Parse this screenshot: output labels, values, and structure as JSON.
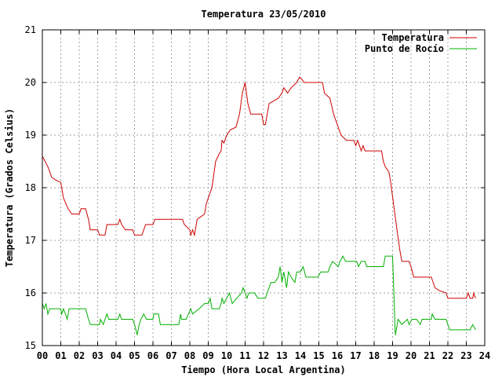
{
  "chart_data": {
    "type": "line",
    "title": "Temperatura 23/05/2010",
    "xlabel": "Tiempo (Hora Local Argentina)",
    "ylabel": "Temperatura (Grados Celsius)",
    "xlim": [
      0,
      24
    ],
    "ylim": [
      15,
      21
    ],
    "x_ticks": [
      "00",
      "01",
      "02",
      "03",
      "04",
      "05",
      "06",
      "07",
      "08",
      "09",
      "10",
      "11",
      "12",
      "13",
      "14",
      "15",
      "16",
      "17",
      "18",
      "19",
      "20",
      "21",
      "22",
      "23",
      "24"
    ],
    "y_ticks": [
      "15",
      "16",
      "17",
      "18",
      "19",
      "20",
      "21"
    ],
    "grid": true,
    "legend_position": "top-right",
    "series": [
      {
        "name": "Temperatura",
        "color": "#d00000",
        "points": [
          [
            0,
            18.6
          ],
          [
            0.15,
            18.5
          ],
          [
            0.3,
            18.4
          ],
          [
            0.5,
            18.2
          ],
          [
            0.7,
            18.15
          ],
          [
            1.0,
            18.1
          ],
          [
            1.15,
            17.8
          ],
          [
            1.4,
            17.6
          ],
          [
            1.6,
            17.5
          ],
          [
            2.0,
            17.5
          ],
          [
            2.1,
            17.6
          ],
          [
            2.35,
            17.6
          ],
          [
            2.5,
            17.4
          ],
          [
            2.6,
            17.2
          ],
          [
            3.0,
            17.2
          ],
          [
            3.1,
            17.1
          ],
          [
            3.4,
            17.1
          ],
          [
            3.5,
            17.3
          ],
          [
            4.1,
            17.3
          ],
          [
            4.2,
            17.4
          ],
          [
            4.3,
            17.3
          ],
          [
            4.5,
            17.2
          ],
          [
            4.9,
            17.2
          ],
          [
            5.0,
            17.1
          ],
          [
            5.4,
            17.1
          ],
          [
            5.5,
            17.2
          ],
          [
            5.6,
            17.3
          ],
          [
            6.0,
            17.3
          ],
          [
            6.1,
            17.4
          ],
          [
            7.6,
            17.4
          ],
          [
            7.7,
            17.3
          ],
          [
            7.85,
            17.25
          ],
          [
            8.0,
            17.2
          ],
          [
            8.05,
            17.1
          ],
          [
            8.15,
            17.2
          ],
          [
            8.25,
            17.1
          ],
          [
            8.4,
            17.4
          ],
          [
            8.8,
            17.5
          ],
          [
            8.9,
            17.7
          ],
          [
            9.2,
            18.0
          ],
          [
            9.4,
            18.5
          ],
          [
            9.6,
            18.65
          ],
          [
            9.7,
            18.7
          ],
          [
            9.75,
            18.9
          ],
          [
            9.85,
            18.85
          ],
          [
            10.0,
            19.0
          ],
          [
            10.2,
            19.1
          ],
          [
            10.5,
            19.15
          ],
          [
            10.7,
            19.4
          ],
          [
            10.85,
            19.8
          ],
          [
            11.0,
            20.0
          ],
          [
            11.15,
            19.6
          ],
          [
            11.3,
            19.4
          ],
          [
            11.9,
            19.4
          ],
          [
            12.0,
            19.2
          ],
          [
            12.1,
            19.2
          ],
          [
            12.3,
            19.6
          ],
          [
            12.8,
            19.7
          ],
          [
            13.0,
            19.8
          ],
          [
            13.1,
            19.9
          ],
          [
            13.3,
            19.8
          ],
          [
            13.5,
            19.9
          ],
          [
            13.8,
            20.0
          ],
          [
            13.95,
            20.1
          ],
          [
            14.1,
            20.05
          ],
          [
            14.2,
            20.0
          ],
          [
            15.2,
            20.0
          ],
          [
            15.3,
            19.8
          ],
          [
            15.6,
            19.7
          ],
          [
            15.8,
            19.4
          ],
          [
            16.0,
            19.2
          ],
          [
            16.2,
            19.0
          ],
          [
            16.5,
            18.9
          ],
          [
            16.9,
            18.9
          ],
          [
            17.0,
            18.8
          ],
          [
            17.1,
            18.9
          ],
          [
            17.3,
            18.7
          ],
          [
            17.4,
            18.8
          ],
          [
            17.5,
            18.7
          ],
          [
            18.4,
            18.7
          ],
          [
            18.5,
            18.5
          ],
          [
            18.6,
            18.4
          ],
          [
            18.8,
            18.3
          ],
          [
            18.9,
            18.1
          ],
          [
            19.2,
            17.3
          ],
          [
            19.4,
            16.8
          ],
          [
            19.5,
            16.6
          ],
          [
            19.9,
            16.6
          ],
          [
            20.0,
            16.5
          ],
          [
            20.15,
            16.3
          ],
          [
            21.1,
            16.3
          ],
          [
            21.2,
            16.2
          ],
          [
            21.3,
            16.1
          ],
          [
            21.5,
            16.05
          ],
          [
            21.9,
            16.0
          ],
          [
            22.0,
            15.9
          ],
          [
            23.0,
            15.9
          ],
          [
            23.1,
            16.0
          ],
          [
            23.2,
            15.9
          ],
          [
            23.35,
            15.9
          ],
          [
            23.4,
            16.0
          ],
          [
            23.5,
            15.9
          ]
        ]
      },
      {
        "name": "Punto de Rocío",
        "color": "#00b000",
        "points": [
          [
            0,
            15.8
          ],
          [
            0.1,
            15.7
          ],
          [
            0.2,
            15.8
          ],
          [
            0.3,
            15.6
          ],
          [
            0.4,
            15.7
          ],
          [
            1.0,
            15.7
          ],
          [
            1.05,
            15.6
          ],
          [
            1.15,
            15.7
          ],
          [
            1.25,
            15.6
          ],
          [
            1.35,
            15.5
          ],
          [
            1.45,
            15.7
          ],
          [
            2.35,
            15.7
          ],
          [
            2.5,
            15.5
          ],
          [
            2.6,
            15.4
          ],
          [
            3.1,
            15.4
          ],
          [
            3.15,
            15.5
          ],
          [
            3.3,
            15.4
          ],
          [
            3.5,
            15.6
          ],
          [
            3.6,
            15.5
          ],
          [
            4.1,
            15.5
          ],
          [
            4.2,
            15.6
          ],
          [
            4.3,
            15.5
          ],
          [
            4.9,
            15.5
          ],
          [
            5.0,
            15.4
          ],
          [
            5.15,
            15.2
          ],
          [
            5.25,
            15.4
          ],
          [
            5.35,
            15.5
          ],
          [
            5.5,
            15.6
          ],
          [
            5.65,
            15.5
          ],
          [
            6.0,
            15.5
          ],
          [
            6.05,
            15.6
          ],
          [
            6.3,
            15.6
          ],
          [
            6.4,
            15.4
          ],
          [
            7.4,
            15.4
          ],
          [
            7.5,
            15.6
          ],
          [
            7.55,
            15.5
          ],
          [
            7.8,
            15.5
          ],
          [
            8.05,
            15.7
          ],
          [
            8.15,
            15.6
          ],
          [
            8.5,
            15.7
          ],
          [
            8.8,
            15.8
          ],
          [
            9.0,
            15.8
          ],
          [
            9.1,
            15.9
          ],
          [
            9.2,
            15.7
          ],
          [
            9.6,
            15.7
          ],
          [
            9.7,
            15.8
          ],
          [
            9.75,
            15.9
          ],
          [
            9.85,
            15.8
          ],
          [
            10.0,
            15.9
          ],
          [
            10.15,
            16.0
          ],
          [
            10.3,
            15.8
          ],
          [
            10.55,
            15.9
          ],
          [
            10.8,
            16.0
          ],
          [
            10.9,
            16.1
          ],
          [
            11.1,
            15.9
          ],
          [
            11.2,
            16.0
          ],
          [
            11.5,
            16.0
          ],
          [
            11.7,
            15.9
          ],
          [
            12.1,
            15.9
          ],
          [
            12.2,
            16.0
          ],
          [
            12.4,
            16.2
          ],
          [
            12.6,
            16.2
          ],
          [
            12.8,
            16.3
          ],
          [
            12.9,
            16.5
          ],
          [
            13.0,
            16.2
          ],
          [
            13.1,
            16.4
          ],
          [
            13.25,
            16.1
          ],
          [
            13.35,
            16.4
          ],
          [
            13.5,
            16.3
          ],
          [
            13.7,
            16.2
          ],
          [
            13.8,
            16.4
          ],
          [
            14.0,
            16.4
          ],
          [
            14.15,
            16.5
          ],
          [
            14.3,
            16.3
          ],
          [
            14.95,
            16.3
          ],
          [
            15.1,
            16.4
          ],
          [
            15.3,
            16.4
          ],
          [
            15.5,
            16.4
          ],
          [
            15.6,
            16.5
          ],
          [
            15.75,
            16.6
          ],
          [
            16.05,
            16.5
          ],
          [
            16.15,
            16.6
          ],
          [
            16.3,
            16.7
          ],
          [
            16.45,
            16.6
          ],
          [
            17.05,
            16.6
          ],
          [
            17.15,
            16.5
          ],
          [
            17.3,
            16.6
          ],
          [
            17.5,
            16.6
          ],
          [
            17.6,
            16.5
          ],
          [
            18.5,
            16.5
          ],
          [
            18.6,
            16.7
          ],
          [
            19.0,
            16.7
          ],
          [
            19.15,
            15.2
          ],
          [
            19.3,
            15.5
          ],
          [
            19.5,
            15.4
          ],
          [
            19.8,
            15.5
          ],
          [
            19.9,
            15.4
          ],
          [
            20.05,
            15.5
          ],
          [
            20.3,
            15.5
          ],
          [
            20.5,
            15.4
          ],
          [
            20.6,
            15.5
          ],
          [
            21.1,
            15.5
          ],
          [
            21.15,
            15.6
          ],
          [
            21.3,
            15.5
          ],
          [
            21.9,
            15.5
          ],
          [
            22.0,
            15.4
          ],
          [
            22.1,
            15.3
          ],
          [
            23.2,
            15.3
          ],
          [
            23.35,
            15.4
          ],
          [
            23.5,
            15.3
          ]
        ]
      }
    ]
  }
}
